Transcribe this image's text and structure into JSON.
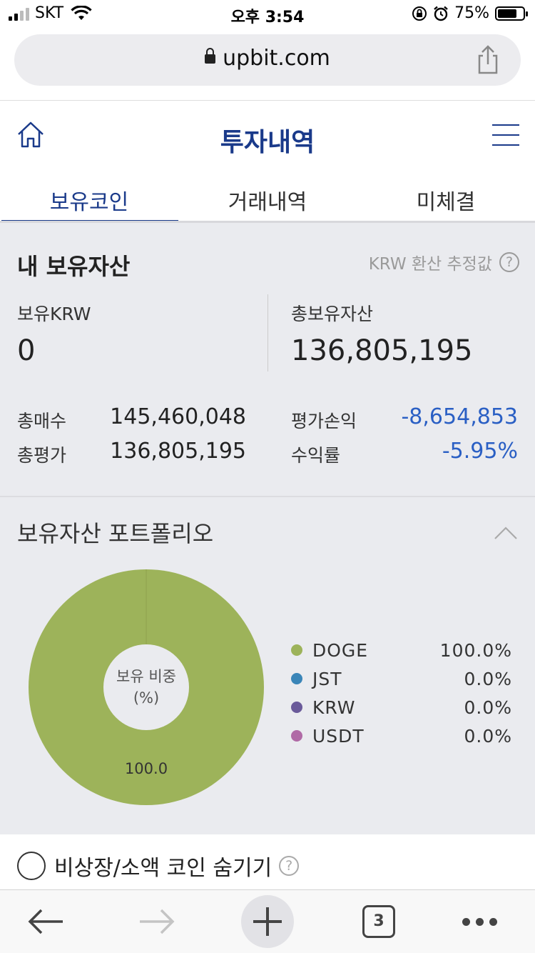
{
  "status_bar": {
    "carrier": "SKT",
    "time": "오후 3:54",
    "battery_percent": "75%",
    "battery_level": 0.75
  },
  "browser": {
    "url": "upbit.com",
    "tab_count": "3"
  },
  "header": {
    "title": "투자내역"
  },
  "tabs": [
    {
      "label": "보유코인",
      "active": true
    },
    {
      "label": "거래내역",
      "active": false
    },
    {
      "label": "미체결",
      "active": false
    }
  ],
  "assets": {
    "section_title": "내 보유자산",
    "krw_note": "KRW 환산 추정값",
    "held_krw_label": "보유KRW",
    "held_krw_value": "0",
    "total_assets_label": "총보유자산",
    "total_assets_value": "136,805,195",
    "total_buy_label": "총매수",
    "total_buy_value": "145,460,048",
    "total_eval_label": "총평가",
    "total_eval_value": "136,805,195",
    "pnl_label": "평가손익",
    "pnl_value": "-8,654,853",
    "return_label": "수익률",
    "return_value": "-5.95%"
  },
  "portfolio": {
    "title": "보유자산 포트폴리오",
    "center_label_1": "보유 비중",
    "center_label_2": "(%)",
    "slice_label": "100.0",
    "legend": [
      {
        "name": "DOGE",
        "pct": "100.0%",
        "value": 100.0,
        "color": "#9db35a"
      },
      {
        "name": "JST",
        "pct": "0.0%",
        "value": 0.0,
        "color": "#3a85b8"
      },
      {
        "name": "KRW",
        "pct": "0.0%",
        "value": 0.0,
        "color": "#6a5a9a"
      },
      {
        "name": "USDT",
        "pct": "0.0%",
        "value": 0.0,
        "color": "#b06aa6"
      }
    ]
  },
  "filter": {
    "hide_label": "비상장/소액 코인 숨기기",
    "checked": false
  },
  "colors": {
    "brand": "#1a3a8a",
    "negative": "#2a5fc4",
    "doge": "#9db35a"
  }
}
